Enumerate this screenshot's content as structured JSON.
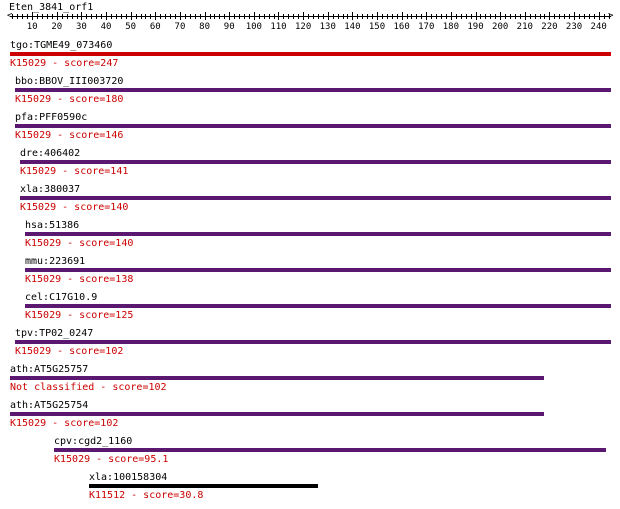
{
  "query": {
    "name": "Eten_3841_orf1"
  },
  "ruler": {
    "min": 1,
    "max": 245,
    "labels": [
      10,
      20,
      30,
      40,
      50,
      60,
      70,
      80,
      90,
      100,
      110,
      120,
      130,
      140,
      150,
      160,
      170,
      180,
      190,
      200,
      210,
      220,
      230,
      240
    ]
  },
  "colors": {
    "best": "#cc0000",
    "hit": "#5a1870",
    "weak": "#000000",
    "label_red": "#cc0000"
  },
  "hits": [
    {
      "gene": "tgo:TGME49_073460",
      "annotation": "K15029 - score=247",
      "start": 1,
      "end": 245,
      "color": "#cc0000"
    },
    {
      "gene": "bbo:BBOV_III003720",
      "annotation": "K15029 - score=180",
      "start": 3,
      "end": 245,
      "color": "#5a1870"
    },
    {
      "gene": "pfa:PFF0590c",
      "annotation": "K15029 - score=146",
      "start": 3,
      "end": 245,
      "color": "#5a1870"
    },
    {
      "gene": "dre:406402",
      "annotation": "K15029 - score=141",
      "start": 5,
      "end": 245,
      "color": "#5a1870"
    },
    {
      "gene": "xla:380037",
      "annotation": "K15029 - score=140",
      "start": 5,
      "end": 245,
      "color": "#5a1870"
    },
    {
      "gene": "hsa:51386",
      "annotation": "K15029 - score=140",
      "start": 7,
      "end": 245,
      "color": "#5a1870"
    },
    {
      "gene": "mmu:223691",
      "annotation": "K15029 - score=138",
      "start": 7,
      "end": 245,
      "color": "#5a1870"
    },
    {
      "gene": "cel:C17G10.9",
      "annotation": "K15029 - score=125",
      "start": 7,
      "end": 245,
      "color": "#5a1870"
    },
    {
      "gene": "tpv:TP02_0247",
      "annotation": "K15029 - score=102",
      "start": 3,
      "end": 245,
      "color": "#5a1870"
    },
    {
      "gene": "ath:AT5G25757",
      "annotation": "Not classified - score=102",
      "start": 1,
      "end": 218,
      "color": "#5a1870"
    },
    {
      "gene": "ath:AT5G25754",
      "annotation": "K15029 - score=102",
      "start": 1,
      "end": 218,
      "color": "#5a1870"
    },
    {
      "gene": "cpv:cgd2_1160",
      "annotation": "K15029 - score=95.1",
      "start": 19,
      "end": 243,
      "color": "#5a1870"
    },
    {
      "gene": "xla:100158304",
      "annotation": "K11512 - score=30.8",
      "start": 33,
      "end": 126,
      "color": "#000000"
    }
  ]
}
